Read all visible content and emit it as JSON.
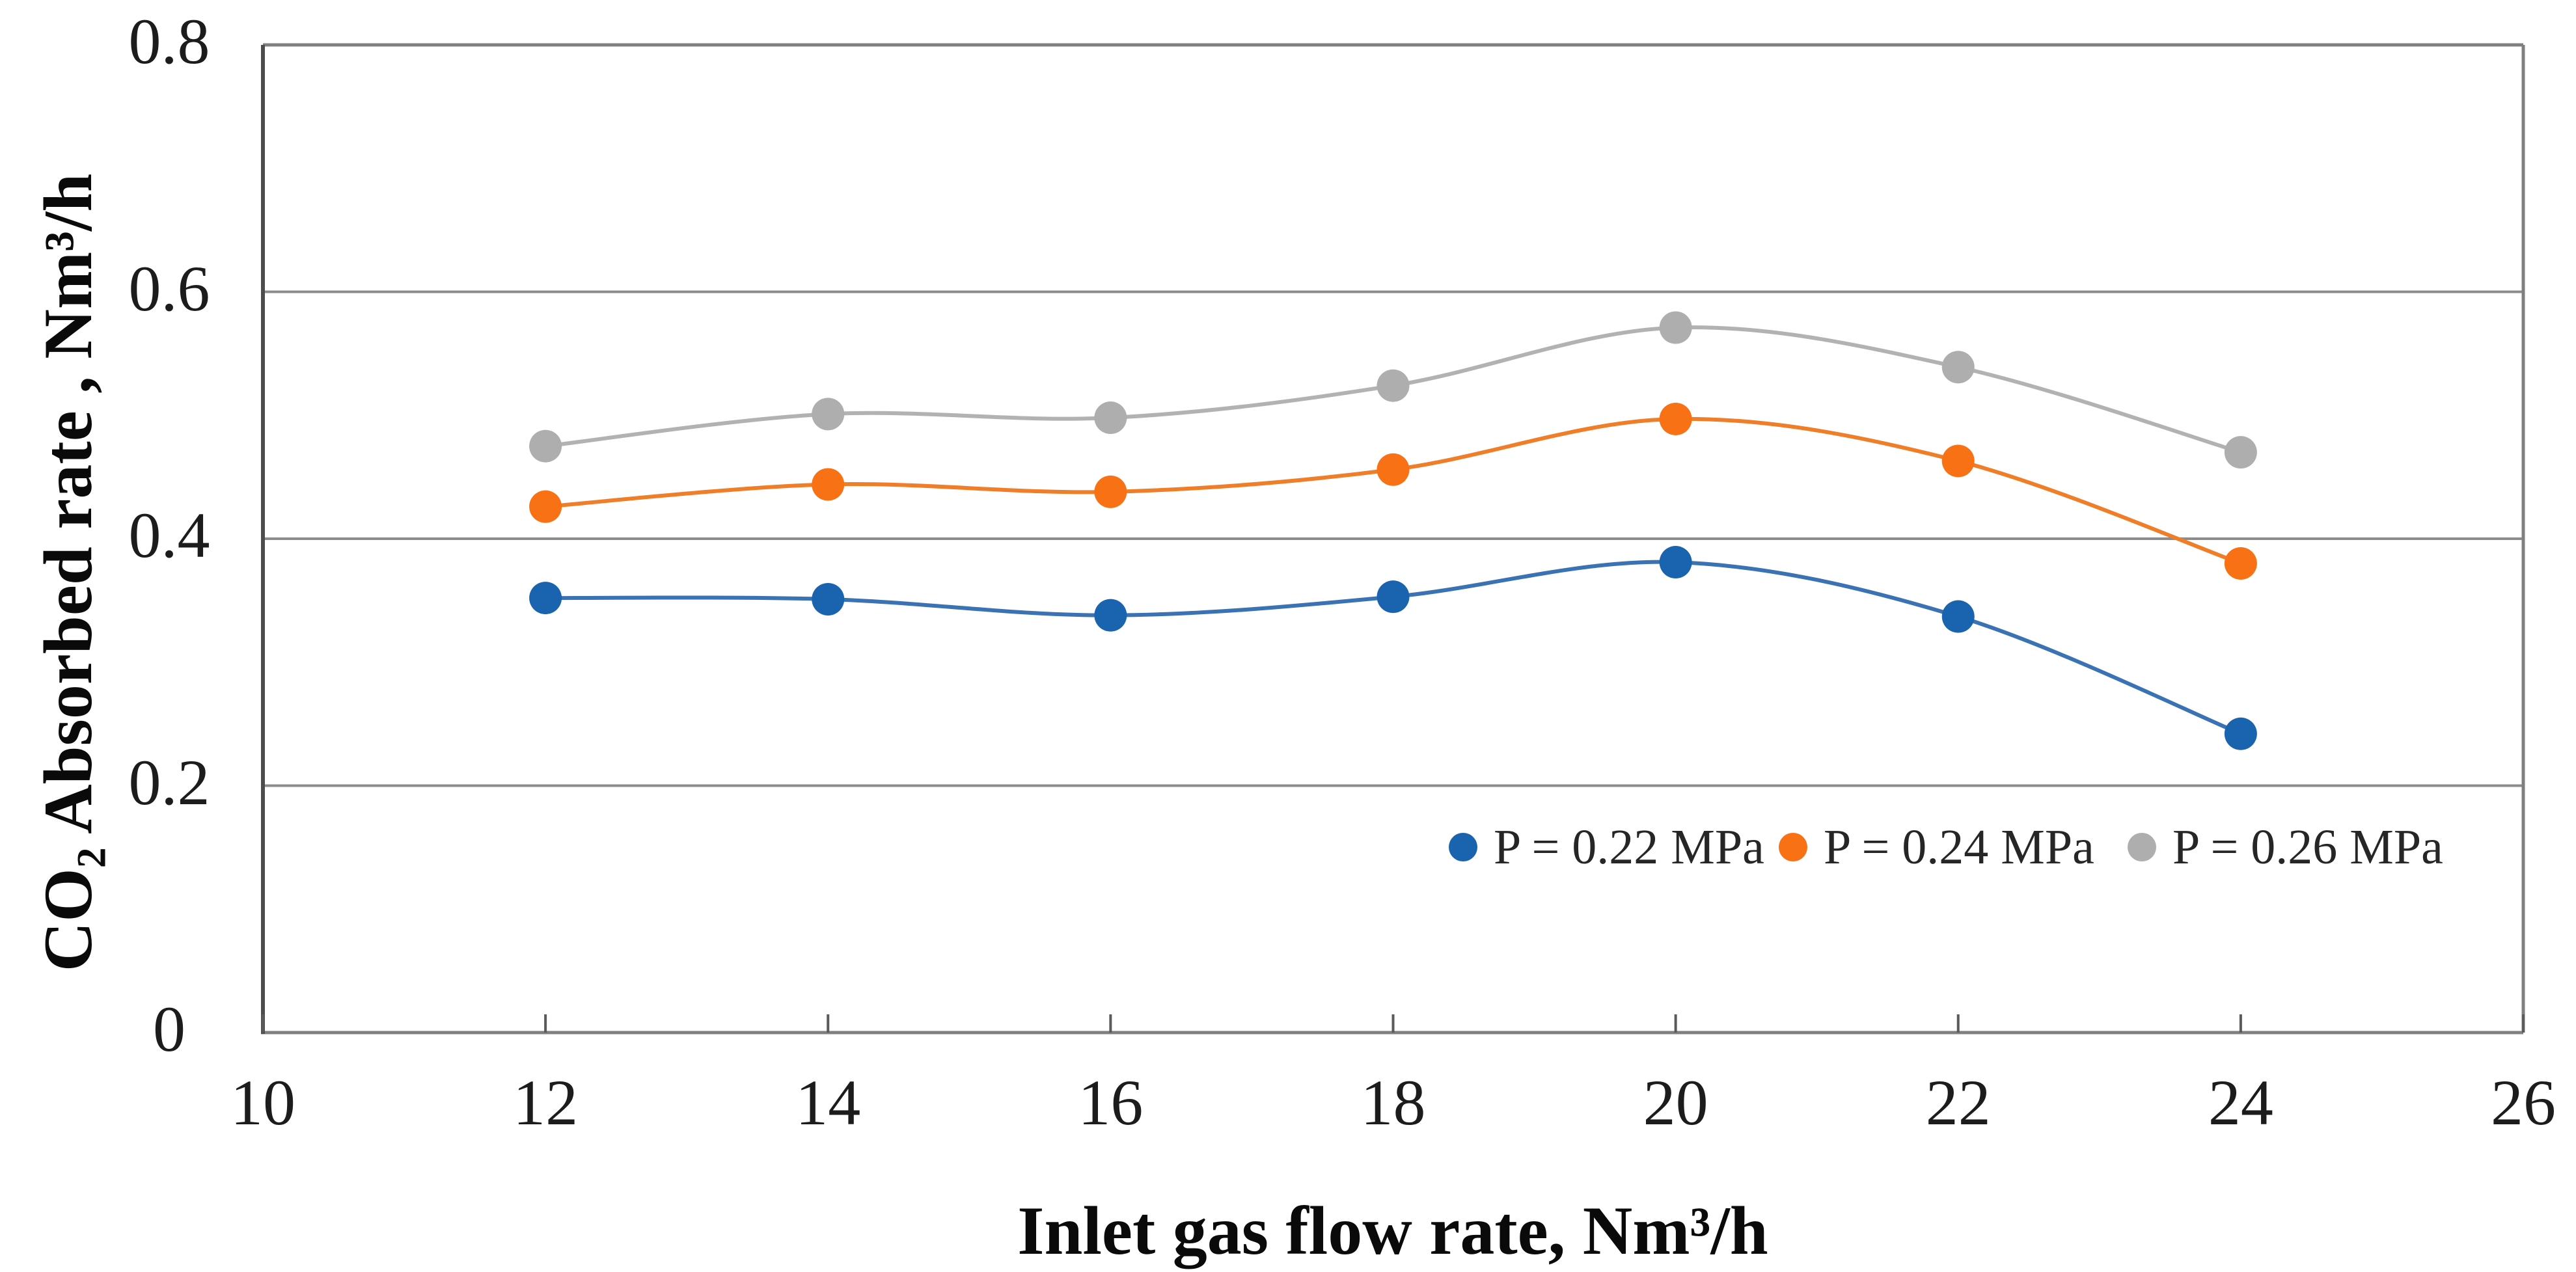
{
  "chart_data": {
    "type": "line",
    "title": "",
    "xlabel": "Inlet gas flow rate, Nm³/h",
    "ylabel": "CO₂ Absorbed rate , Nm³/h",
    "x": [
      12,
      14,
      16,
      18,
      20,
      22,
      24
    ],
    "xlim": [
      10,
      26
    ],
    "ylim": [
      0,
      0.8
    ],
    "x_tick_labels": [
      "10",
      "12",
      "14",
      "16",
      "18",
      "20",
      "22",
      "24",
      "26"
    ],
    "x_tick_values": [
      10,
      12,
      14,
      16,
      18,
      20,
      22,
      24,
      26
    ],
    "y_tick_labels": [
      "0",
      "0.2",
      "0.4",
      "0.6",
      "0.8"
    ],
    "y_tick_values": [
      0,
      0.2,
      0.4,
      0.6,
      0.8
    ],
    "grid": "horizontal gridlines at 0.2, 0.4, 0.6; full plot border top/right",
    "line_style": "smoothed with circular markers",
    "legend_position": "inside plot, lower right",
    "series": [
      {
        "name": "P = 0.22 MPa",
        "marker_color": "#1A63AE",
        "line_color": "#3A72B4",
        "values": [
          0.352,
          0.351,
          0.338,
          0.353,
          0.381,
          0.337,
          0.242
        ]
      },
      {
        "name": "P = 0.24 MPa",
        "marker_color": "#F87115",
        "line_color": "#F07E28",
        "values": [
          0.426,
          0.444,
          0.438,
          0.456,
          0.497,
          0.463,
          0.38
        ]
      },
      {
        "name": "P = 0.26 MPa",
        "marker_color": "#AEAEAE",
        "line_color": "#B2B2B2",
        "values": [
          0.475,
          0.501,
          0.498,
          0.524,
          0.571,
          0.539,
          0.47
        ]
      }
    ],
    "axis_colors": {
      "gridline": "#8C8C8C",
      "border": "#7F7F7F",
      "y_axis": "#4D4D4D",
      "tick": "#5A5A5A"
    }
  }
}
